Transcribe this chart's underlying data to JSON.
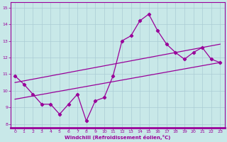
{
  "xlabel": "Windchill (Refroidissement éolien,°C)",
  "bg_color": "#c8e8e8",
  "grid_color": "#aaccd4",
  "line_color": "#990099",
  "tick_color": "#990099",
  "border_color": "#990099",
  "x_data": [
    0,
    1,
    2,
    3,
    4,
    5,
    6,
    7,
    8,
    9,
    10,
    11,
    12,
    13,
    14,
    15,
    16,
    17,
    18,
    19,
    20,
    21,
    22,
    23
  ],
  "y_main": [
    10.9,
    10.4,
    9.8,
    9.2,
    9.2,
    8.6,
    9.2,
    9.8,
    8.2,
    9.4,
    9.6,
    10.9,
    13.0,
    13.3,
    14.2,
    14.6,
    13.6,
    12.8,
    12.3,
    11.9,
    12.3,
    12.6,
    11.9,
    11.7
  ],
  "trend1_start": 9.5,
  "trend1_end": 11.7,
  "trend2_start": 10.5,
  "trend2_end": 12.8,
  "xlim": [
    -0.5,
    23.5
  ],
  "ylim": [
    7.8,
    15.3
  ],
  "yticks": [
    8,
    9,
    10,
    11,
    12,
    13,
    14,
    15
  ],
  "xticks": [
    0,
    1,
    2,
    3,
    4,
    5,
    6,
    7,
    8,
    9,
    10,
    11,
    12,
    13,
    14,
    15,
    16,
    17,
    18,
    19,
    20,
    21,
    22,
    23
  ]
}
